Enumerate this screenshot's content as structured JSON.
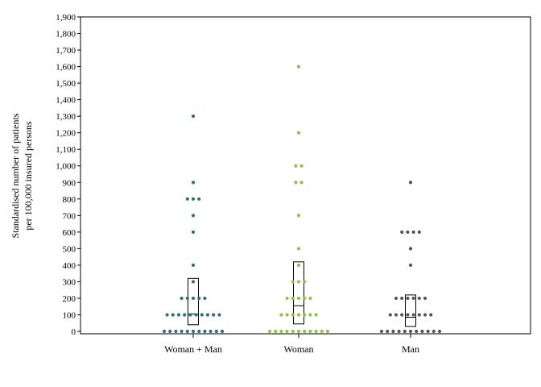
{
  "chart_data": {
    "type": "scatter",
    "subtype": "dot-plot-with-box",
    "ylabel": [
      "Standardised number of patients",
      "per 100,000 insured persons"
    ],
    "ylim": [
      0,
      1900
    ],
    "yticks": [
      0,
      100,
      200,
      300,
      400,
      500,
      600,
      700,
      800,
      900,
      1000,
      1100,
      1200,
      1300,
      1400,
      1500,
      1600,
      1700,
      1800,
      1900
    ],
    "ytick_labels": [
      "0",
      "100",
      "200",
      "300",
      "400",
      "500",
      "600",
      "700",
      "800",
      "900",
      "1,000",
      "1,100",
      "1,200",
      "1,300",
      "1,400",
      "1,500",
      "1,600",
      "1,700",
      "1,800",
      "1,900"
    ],
    "categories": [
      "Woman + Man",
      "Woman",
      "Man"
    ],
    "grid": false,
    "series": [
      {
        "color": "#2a7278",
        "values": [
          0,
          0,
          0,
          0,
          0,
          0,
          0,
          0,
          0,
          0,
          0,
          100,
          100,
          100,
          100,
          100,
          100,
          100,
          100,
          100,
          100,
          200,
          200,
          200,
          200,
          200,
          300,
          400,
          600,
          700,
          800,
          800,
          800,
          900,
          1300
        ],
        "box": {
          "q1": 40,
          "median": 105,
          "q3": 320
        }
      },
      {
        "color": "#8cc63f",
        "values": [
          0,
          0,
          0,
          0,
          0,
          0,
          0,
          0,
          0,
          0,
          0,
          100,
          100,
          100,
          100,
          100,
          100,
          100,
          200,
          200,
          200,
          200,
          200,
          300,
          300,
          300,
          400,
          500,
          700,
          900,
          900,
          1000,
          1000,
          1200,
          1600
        ],
        "box": {
          "q1": 45,
          "median": 155,
          "q3": 420
        }
      },
      {
        "color": "#555555",
        "values": [
          0,
          0,
          0,
          0,
          0,
          0,
          0,
          0,
          0,
          0,
          0,
          100,
          100,
          100,
          100,
          100,
          100,
          100,
          100,
          200,
          200,
          200,
          200,
          200,
          200,
          400,
          500,
          600,
          600,
          600,
          600,
          900
        ],
        "box": {
          "q1": 30,
          "median": 85,
          "q3": 220
        }
      }
    ]
  }
}
